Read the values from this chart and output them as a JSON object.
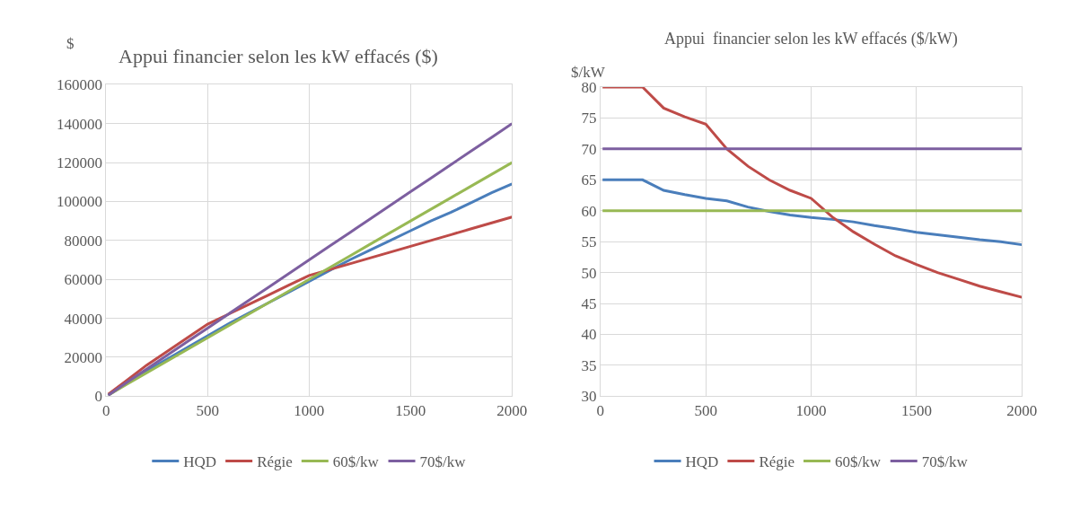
{
  "chart_data": [
    {
      "type": "line",
      "title": "Appui financier selon les kW effacés ($)",
      "ylabel": "$",
      "x": [
        10,
        100,
        200,
        300,
        400,
        500,
        600,
        700,
        800,
        900,
        1000,
        1100,
        1200,
        1300,
        1400,
        1500,
        1600,
        1700,
        1800,
        1900,
        2000
      ],
      "series": [
        {
          "name": "HQD",
          "color": "#4a7ebb",
          "values": [
            500,
            6500,
            13000,
            19000,
            25000,
            31000,
            37000,
            42500,
            48000,
            53500,
            59000,
            64500,
            70000,
            75000,
            80000,
            85000,
            90000,
            94500,
            99500,
            104500,
            109000
          ]
        },
        {
          "name": "Régie",
          "color": "#be4b48",
          "values": [
            1000,
            8000,
            16000,
            23000,
            30000,
            37000,
            42000,
            47000,
            52000,
            57000,
            62000,
            65000,
            68000,
            71000,
            74000,
            77000,
            80000,
            83000,
            86000,
            89000,
            92000
          ]
        },
        {
          "name": "60$/kw",
          "color": "#98b954",
          "values": [
            500,
            6000,
            12000,
            18000,
            24000,
            30000,
            36000,
            42000,
            48000,
            54000,
            60000,
            66000,
            72000,
            78000,
            84000,
            90000,
            96000,
            102000,
            108000,
            114000,
            120000
          ]
        },
        {
          "name": "70$/kw",
          "color": "#7d5fa0",
          "values": [
            500,
            7000,
            14000,
            21000,
            28000,
            35000,
            42000,
            49000,
            56000,
            63000,
            70000,
            77000,
            84000,
            91000,
            98000,
            105000,
            112000,
            119000,
            126000,
            133000,
            140000
          ]
        }
      ],
      "xlim": [
        0,
        2000
      ],
      "xticks": [
        0,
        500,
        1000,
        1500,
        2000
      ],
      "ylim": [
        0,
        160000
      ],
      "yticks": [
        0,
        20000,
        40000,
        60000,
        80000,
        100000,
        120000,
        140000,
        160000
      ],
      "grid": true,
      "legend": "bottom",
      "line_style": "solid"
    },
    {
      "type": "line",
      "title": "Appui  financier selon les kW effacés ($/kW)",
      "ylabel": "$/kW",
      "x": [
        10,
        100,
        200,
        300,
        400,
        500,
        600,
        700,
        800,
        900,
        1000,
        1100,
        1200,
        1300,
        1400,
        1500,
        1600,
        1700,
        1800,
        1900,
        2000
      ],
      "series": [
        {
          "name": "HQD",
          "color": "#4a7ebb",
          "values": [
            65,
            65,
            65,
            63.3,
            62.6,
            62,
            61.6,
            60.6,
            59.9,
            59.3,
            58.9,
            58.6,
            58.2,
            57.6,
            57.1,
            56.5,
            56.1,
            55.7,
            55.3,
            55,
            54.5
          ]
        },
        {
          "name": "Régie",
          "color": "#be4b48",
          "values": [
            80,
            80,
            80,
            76.6,
            75.2,
            74,
            70,
            67.2,
            65,
            63.3,
            62,
            59,
            56.6,
            54.6,
            52.7,
            51.3,
            50,
            48.9,
            47.8,
            46.9,
            46
          ]
        },
        {
          "name": "60$/kw",
          "color": "#98b954",
          "values": [
            60,
            60,
            60,
            60,
            60,
            60,
            60,
            60,
            60,
            60,
            60,
            60,
            60,
            60,
            60,
            60,
            60,
            60,
            60,
            60,
            60
          ]
        },
        {
          "name": "70$/kw",
          "color": "#7d5fa0",
          "values": [
            70,
            70,
            70,
            70,
            70,
            70,
            70,
            70,
            70,
            70,
            70,
            70,
            70,
            70,
            70,
            70,
            70,
            70,
            70,
            70,
            70
          ]
        }
      ],
      "xlim": [
        0,
        2000
      ],
      "xticks": [
        0,
        500,
        1000,
        1500,
        2000
      ],
      "ylim": [
        30,
        80
      ],
      "yticks": [
        30,
        35,
        40,
        45,
        50,
        55,
        60,
        65,
        70,
        75,
        80
      ],
      "grid": true,
      "legend": "bottom",
      "line_style": "solid"
    }
  ]
}
